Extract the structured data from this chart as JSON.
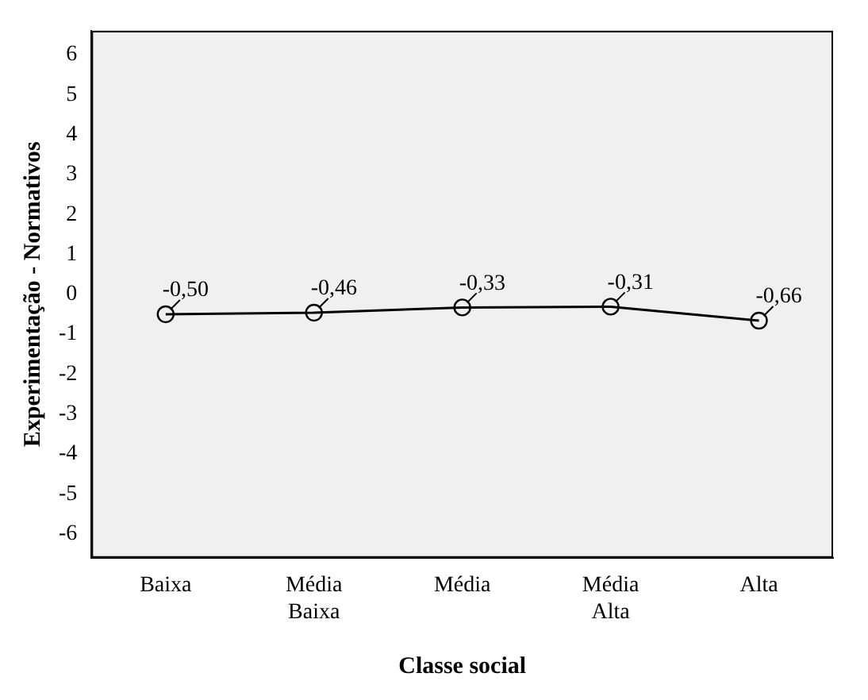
{
  "chart_data": {
    "type": "line",
    "xlabel": "Classe social",
    "ylabel": "Experimentação - Normativos",
    "categories": [
      "Baixa",
      "Média Baixa",
      "Média",
      "Média Alta",
      "Alta"
    ],
    "series": [
      {
        "color": "#000000",
        "values": [
          -0.5,
          -0.46,
          -0.33,
          -0.31,
          -0.66
        ],
        "value_labels": [
          "-0,50",
          "-0,46",
          "-0,33",
          "-0,31",
          "-0,66"
        ]
      }
    ],
    "ylim": [
      -6.6,
      6.6
    ],
    "yticks": [
      -6,
      -5,
      -4,
      -3,
      -2,
      -1,
      0,
      1,
      2,
      3,
      4,
      5,
      6
    ],
    "grid": false,
    "legend": false,
    "marker": "circle",
    "line_style": "solid"
  }
}
